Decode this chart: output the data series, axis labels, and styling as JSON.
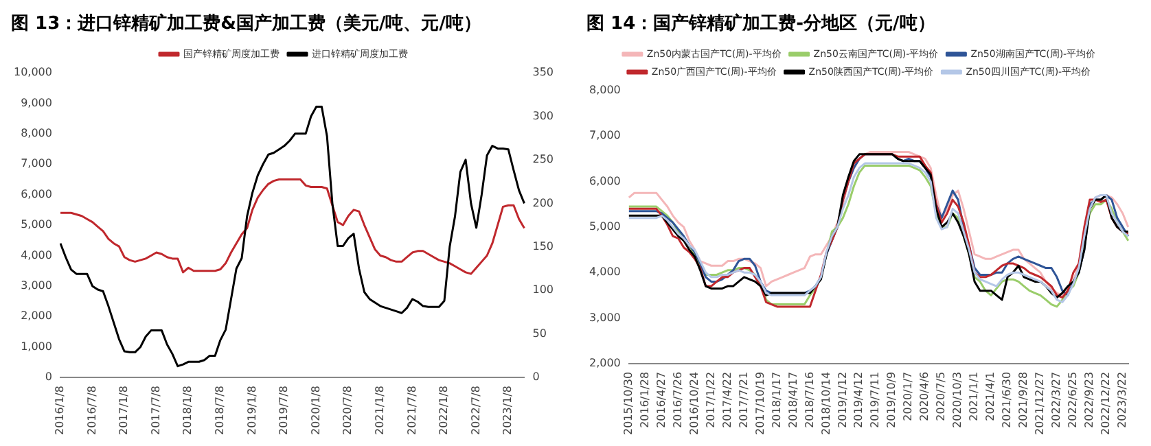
{
  "chart_data": [
    {
      "type": "line",
      "title": "图 13：进口锌精矿加工费&国产加工费（美元/吨、元/吨）",
      "legend": "top",
      "grid": false,
      "categories": [
        "2016/1/8",
        null,
        null,
        null,
        null,
        null,
        "2016/7/8",
        null,
        null,
        null,
        null,
        null,
        "2017/1/8",
        null,
        null,
        null,
        null,
        null,
        "2017/7/8",
        null,
        null,
        null,
        null,
        null,
        "2018/1/8",
        null,
        null,
        null,
        null,
        null,
        "2018/7/8",
        null,
        null,
        null,
        null,
        null,
        "2019/1/8",
        null,
        null,
        null,
        null,
        null,
        "2019/7/8",
        null,
        null,
        null,
        null,
        null,
        "2020/1/8",
        null,
        null,
        null,
        null,
        null,
        "2020/7/8",
        null,
        null,
        null,
        null,
        null,
        "2021/1/8",
        null,
        null,
        null,
        null,
        null,
        "2021/7/8",
        null,
        null,
        null,
        null,
        null,
        "2022/1/8",
        null,
        null,
        null,
        null,
        null,
        "2022/7/8",
        null,
        null,
        null,
        null,
        null,
        "2023/1/8",
        null,
        null,
        null
      ],
      "ylim": [
        0,
        10000
      ],
      "yticks": [
        0,
        {
          "value": 1000,
          "label": "1,000"
        },
        {
          "value": 2000,
          "label": "2,000"
        },
        {
          "value": 3000,
          "label": "3,000"
        },
        {
          "value": 4000,
          "label": "4,000"
        },
        {
          "value": 5000,
          "label": "5,000"
        },
        {
          "value": 6000,
          "label": "6,000"
        },
        {
          "value": 7000,
          "label": "7,000"
        },
        {
          "value": 8000,
          "label": "8,000"
        },
        {
          "value": 9000,
          "label": "9,000"
        },
        {
          "value": 10000,
          "label": "10,000"
        }
      ],
      "y2lim": [
        0,
        350
      ],
      "y2ticks": [
        0,
        50,
        100,
        150,
        200,
        250,
        300,
        350
      ],
      "series": [
        {
          "name": "国产锌精矿周度加工费",
          "color": "#c0282d",
          "values": [
            5400,
            5400,
            5400,
            5350,
            5300,
            5200,
            5100,
            4950,
            4800,
            4550,
            4400,
            4300,
            3950,
            3850,
            3800,
            3850,
            3900,
            4000,
            4100,
            4050,
            3950,
            3900,
            3900,
            3450,
            3600,
            3500,
            3500,
            3500,
            3500,
            3500,
            3550,
            3750,
            4100,
            4400,
            4700,
            4900,
            5500,
            5900,
            6150,
            6350,
            6450,
            6500,
            6500,
            6500,
            6500,
            6500,
            6300,
            6250,
            6250,
            6250,
            6200,
            5650,
            5100,
            5000,
            5300,
            5500,
            5450,
            5000,
            4600,
            4200,
            4000,
            3950,
            3850,
            3800,
            3800,
            3950,
            4100,
            4150,
            4150,
            4050,
            3950,
            3850,
            3800,
            3750,
            3650,
            3550,
            3450,
            3400,
            3600,
            3800,
            4000,
            4400,
            5000,
            5600,
            5650,
            5650,
            5200,
            4900
          ]
        },
        {
          "name": "进口锌精矿周度加工费",
          "color": "#000000",
          "axis": "y2",
          "values": [
            154,
            138,
            124,
            119,
            119,
            119,
            105,
            101,
            99,
            82,
            63,
            44,
            30,
            29,
            29,
            35,
            47,
            54,
            54,
            54,
            38,
            27,
            13,
            15,
            18,
            18,
            18,
            20,
            25,
            25,
            43,
            55,
            90,
            125,
            137,
            185,
            212,
            232,
            245,
            256,
            258,
            262,
            266,
            272,
            280,
            280,
            280,
            300,
            311,
            311,
            277,
            200,
            151,
            151,
            160,
            165,
            125,
            98,
            90,
            86,
            82,
            80,
            78,
            76,
            74,
            80,
            90,
            87,
            82,
            81,
            81,
            81,
            88,
            150,
            185,
            236,
            250,
            200,
            172,
            210,
            255,
            266,
            263,
            263,
            262,
            238,
            215,
            200
          ]
        }
      ]
    },
    {
      "type": "line",
      "title": "图 14：国产锌精矿加工费-分地区（元/吨）",
      "legend": "top",
      "grid": false,
      "categories": [
        "2015/10/30",
        null,
        null,
        "2016/1/28",
        null,
        null,
        "2016/4/27",
        null,
        null,
        "2016/7/26",
        null,
        null,
        "2016/10/24",
        null,
        null,
        "2017/1/22",
        null,
        null,
        "2017/4/22",
        null,
        null,
        "2017/7/21",
        null,
        null,
        "2017/10/19",
        null,
        null,
        "2018/1/17",
        null,
        null,
        "2018/4/17",
        null,
        null,
        "2018/7/16",
        null,
        null,
        "2018/10/14",
        null,
        null,
        "2019/1/12",
        null,
        null,
        "2019/4/12",
        null,
        null,
        "2019/7/11",
        null,
        null,
        "2019/10/9",
        null,
        null,
        "2020/1/7",
        null,
        null,
        "2020/4/6",
        null,
        null,
        "2020/7/5",
        null,
        null,
        "2020/10/3",
        null,
        null,
        "2021/1/1",
        null,
        null,
        "2021/4/1",
        null,
        null,
        "2021/6/30",
        null,
        null,
        "2021/9/28",
        null,
        null,
        "2021/12/27",
        null,
        null,
        "2022/3/27",
        null,
        null,
        "2022/6/25",
        null,
        null,
        "2022/9/23",
        null,
        null,
        "2022/12/22",
        null,
        null,
        "2023/3/22",
        null
      ],
      "ylim": [
        2000,
        8000
      ],
      "yticks": [
        {
          "value": 2000,
          "label": "2,000"
        },
        {
          "value": 3000,
          "label": "3,000"
        },
        {
          "value": 4000,
          "label": "4,000"
        },
        {
          "value": 5000,
          "label": "5,000"
        },
        {
          "value": 6000,
          "label": "6,000"
        },
        {
          "value": 7000,
          "label": "7,000"
        },
        {
          "value": 8000,
          "label": "8,000"
        }
      ],
      "series": [
        {
          "name": "Zn50内蒙古国产TC(周)-平均价",
          "color": "#f4b6b8",
          "values": [
            5650,
            5750,
            5750,
            5750,
            5750,
            5750,
            5600,
            5450,
            5250,
            5100,
            5000,
            4700,
            4500,
            4250,
            4200,
            4150,
            4150,
            4150,
            4250,
            4250,
            4300,
            4300,
            4250,
            4200,
            4100,
            3700,
            3800,
            3850,
            3900,
            3950,
            4000,
            4050,
            4100,
            4350,
            4400,
            4400,
            4600,
            4800,
            5100,
            5500,
            6000,
            6300,
            6500,
            6600,
            6650,
            6650,
            6650,
            6650,
            6650,
            6650,
            6650,
            6650,
            6600,
            6550,
            6500,
            6300,
            5700,
            5200,
            5400,
            5700,
            5800,
            5400,
            4900,
            4400,
            4350,
            4300,
            4300,
            4350,
            4400,
            4450,
            4500,
            4500,
            4300,
            4200,
            4100,
            4000,
            3800,
            3650,
            3550,
            3500,
            3650,
            3800,
            4200,
            4800,
            5400,
            5650,
            5700,
            5700,
            5650,
            5500,
            5300,
            5000
          ]
        },
        {
          "name": "Zn50云南国产TC(周)-平均价",
          "color": "#9acd6a",
          "values": [
            5450,
            5450,
            5450,
            5450,
            5450,
            5450,
            5350,
            5250,
            5100,
            4900,
            4750,
            4600,
            4400,
            4150,
            3950,
            3950,
            3950,
            4000,
            4050,
            4050,
            4100,
            4100,
            4050,
            3950,
            3750,
            3400,
            3300,
            3300,
            3300,
            3300,
            3300,
            3300,
            3300,
            3500,
            3650,
            3900,
            4400,
            4900,
            5000,
            5200,
            5500,
            5900,
            6200,
            6350,
            6350,
            6350,
            6350,
            6350,
            6350,
            6350,
            6350,
            6350,
            6300,
            6250,
            6100,
            5900,
            5300,
            5000,
            5000,
            5300,
            5200,
            4800,
            4400,
            3900,
            3800,
            3600,
            3500,
            3650,
            3800,
            3850,
            3850,
            3800,
            3700,
            3600,
            3550,
            3500,
            3400,
            3300,
            3250,
            3400,
            3600,
            3700,
            4000,
            4700,
            5300,
            5500,
            5500,
            5600,
            5400,
            5100,
            4900,
            4700
          ]
        },
        {
          "name": "Zn50湖南国产TC(周)-平均价",
          "color": "#2f5597",
          "values": [
            5350,
            5350,
            5350,
            5350,
            5350,
            5350,
            5300,
            5200,
            5100,
            4950,
            4800,
            4600,
            4450,
            4200,
            3900,
            3800,
            3800,
            3850,
            3950,
            4050,
            4250,
            4300,
            4300,
            4150,
            3800,
            3600,
            3550,
            3550,
            3550,
            3550,
            3550,
            3550,
            3550,
            3600,
            3700,
            3900,
            4400,
            4700,
            5000,
            5600,
            6000,
            6300,
            6500,
            6600,
            6600,
            6600,
            6600,
            6600,
            6600,
            6500,
            6450,
            6500,
            6450,
            6450,
            6300,
            6100,
            5500,
            5200,
            5500,
            5800,
            5600,
            5000,
            4600,
            4100,
            3950,
            3950,
            3950,
            4000,
            4000,
            4200,
            4300,
            4350,
            4300,
            4250,
            4200,
            4150,
            4100,
            4100,
            3900,
            3600,
            3500,
            3800,
            4000,
            4500,
            5500,
            5600,
            5600,
            5700,
            5600,
            5200,
            5000,
            4800
          ]
        },
        {
          "name": "Zn50广西国产TC(周)-平均价",
          "color": "#c0282d",
          "values": [
            5400,
            5400,
            5400,
            5400,
            5400,
            5400,
            5250,
            5050,
            4800,
            4750,
            4550,
            4450,
            4300,
            4100,
            3700,
            3700,
            3800,
            3900,
            3900,
            4000,
            4050,
            4100,
            4100,
            3900,
            3700,
            3350,
            3300,
            3250,
            3250,
            3250,
            3250,
            3250,
            3250,
            3250,
            3600,
            3950,
            4450,
            4700,
            5000,
            5600,
            6000,
            6400,
            6500,
            6600,
            6600,
            6600,
            6600,
            6600,
            6600,
            6550,
            6550,
            6550,
            6550,
            6550,
            6350,
            6200,
            5500,
            5100,
            5300,
            5600,
            5450,
            5100,
            4600,
            4000,
            3900,
            3900,
            3950,
            4050,
            4150,
            4200,
            4200,
            4150,
            4100,
            4000,
            3950,
            3900,
            3800,
            3700,
            3500,
            3450,
            3600,
            4000,
            4200,
            5000,
            5600,
            5600,
            5550,
            5600,
            5200,
            5000,
            4900,
            4850
          ]
        },
        {
          "name": "Zn50陕西国产TC(周)-平均价",
          "color": "#000000",
          "values": [
            5250,
            5250,
            5250,
            5250,
            5250,
            5250,
            5250,
            5100,
            4950,
            4800,
            4700,
            4500,
            4350,
            4050,
            3700,
            3650,
            3650,
            3650,
            3700,
            3700,
            3800,
            3900,
            3850,
            3800,
            3700,
            3500,
            3550,
            3550,
            3550,
            3550,
            3550,
            3550,
            3550,
            3550,
            3700,
            3850,
            4400,
            4800,
            5000,
            5700,
            6100,
            6450,
            6600,
            6600,
            6600,
            6600,
            6600,
            6600,
            6600,
            6500,
            6450,
            6450,
            6450,
            6450,
            6300,
            6150,
            5400,
            5000,
            5100,
            5300,
            5100,
            4800,
            4400,
            3800,
            3600,
            3600,
            3600,
            3500,
            3400,
            3900,
            4000,
            4150,
            3900,
            3850,
            3800,
            3800,
            3700,
            3550,
            3450,
            3550,
            3700,
            3800,
            4000,
            4500,
            5400,
            5600,
            5600,
            5700,
            5200,
            5000,
            4900,
            4900
          ]
        },
        {
          "name": "Zn50四川国产TC(周)-平均价",
          "color": "#b4c7e7",
          "values": [
            5200,
            5200,
            5200,
            5200,
            5200,
            5200,
            5250,
            5150,
            5000,
            4850,
            4750,
            4600,
            4500,
            4250,
            4000,
            3900,
            3900,
            3950,
            3950,
            4000,
            4050,
            4000,
            4000,
            3950,
            3800,
            3550,
            3500,
            3500,
            3500,
            3500,
            3500,
            3500,
            3500,
            3600,
            3700,
            3900,
            4450,
            4800,
            5000,
            5400,
            5700,
            6100,
            6300,
            6400,
            6400,
            6400,
            6400,
            6400,
            6400,
            6400,
            6400,
            6400,
            6350,
            6300,
            6200,
            6000,
            5200,
            4950,
            5000,
            5400,
            5300,
            4900,
            4500,
            4000,
            3850,
            3800,
            3750,
            3700,
            3850,
            3950,
            4000,
            4000,
            3950,
            3900,
            3850,
            3800,
            3700,
            3600,
            3400,
            3350,
            3500,
            3750,
            4100,
            4800,
            5400,
            5650,
            5700,
            5700,
            5300,
            5100,
            4900,
            4800
          ]
        }
      ]
    }
  ]
}
